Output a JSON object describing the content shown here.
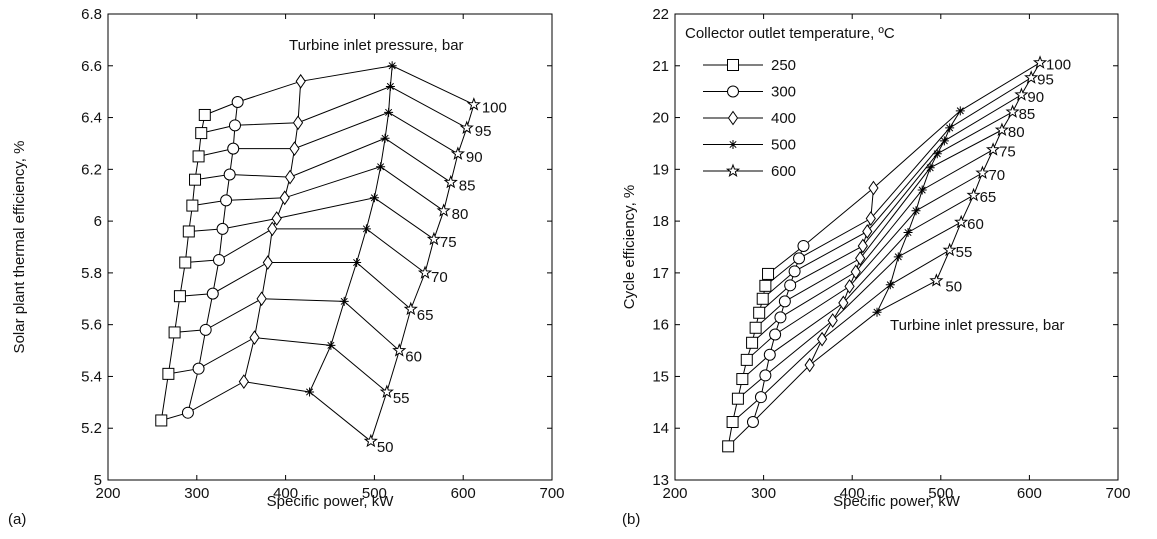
{
  "chart_data": [
    {
      "panel_label": "(a)",
      "type": "line",
      "xlabel": "Specific power, kW",
      "ylabel": "Solar plant thermal efficiency, %",
      "xlim": [
        200,
        700
      ],
      "ylim": [
        5,
        6.8
      ],
      "xticks": [
        200,
        300,
        400,
        500,
        600,
        700
      ],
      "yticks": [
        5,
        5.2,
        5.4,
        5.6,
        5.8,
        6,
        6.2,
        6.4,
        6.6,
        6.8
      ],
      "annotation": "Turbine inlet pressure, bar",
      "pressure_labels": [
        "50",
        "55",
        "60",
        "65",
        "70",
        "75",
        "80",
        "85",
        "90",
        "95",
        "100"
      ],
      "series": [
        {
          "name": "250",
          "marker": "square",
          "x": [
            260,
            268,
            275,
            281,
            287,
            291,
            295,
            298,
            302,
            305,
            309
          ],
          "y": [
            5.23,
            5.41,
            5.57,
            5.71,
            5.84,
            5.96,
            6.06,
            6.16,
            6.25,
            6.34,
            6.41
          ]
        },
        {
          "name": "300",
          "marker": "circle",
          "x": [
            290,
            302,
            310,
            318,
            325,
            329,
            333,
            337,
            341,
            343,
            346
          ],
          "y": [
            5.26,
            5.43,
            5.58,
            5.72,
            5.85,
            5.97,
            6.08,
            6.18,
            6.28,
            6.37,
            6.46
          ]
        },
        {
          "name": "400",
          "marker": "diamond",
          "x": [
            353,
            365,
            373,
            380,
            385,
            390,
            399,
            405,
            410,
            414,
            417
          ],
          "y": [
            5.38,
            5.55,
            5.7,
            5.84,
            5.97,
            6.01,
            6.09,
            6.17,
            6.28,
            6.38,
            6.54
          ]
        },
        {
          "name": "500",
          "marker": "asterisk",
          "x": [
            427,
            451,
            466,
            480,
            491,
            500,
            507,
            512,
            516,
            518,
            520
          ],
          "y": [
            5.34,
            5.52,
            5.69,
            5.84,
            5.97,
            6.09,
            6.21,
            6.32,
            6.42,
            6.52,
            6.6
          ]
        },
        {
          "name": "600",
          "marker": "star",
          "x": [
            496,
            514,
            528,
            541,
            557,
            567,
            578,
            586,
            594,
            604,
            612
          ],
          "y": [
            5.15,
            5.34,
            5.5,
            5.66,
            5.8,
            5.93,
            6.04,
            6.15,
            6.26,
            6.36,
            6.45
          ]
        }
      ]
    },
    {
      "panel_label": "(b)",
      "type": "line",
      "xlabel": "Specific power, kW",
      "ylabel": "Cycle efficiency, %",
      "xlim": [
        200,
        700
      ],
      "ylim": [
        13,
        22
      ],
      "xticks": [
        200,
        300,
        400,
        500,
        600,
        700
      ],
      "yticks": [
        13,
        14,
        15,
        16,
        17,
        18,
        19,
        20,
        21,
        22
      ],
      "annotation": "Turbine inlet pressure, bar",
      "pressure_labels": [
        "50",
        "55",
        "60",
        "65",
        "70",
        "75",
        "80",
        "85",
        "90",
        "95",
        "100"
      ],
      "legend": {
        "title": "Collector outlet temperature, ºC",
        "placement": "top-left"
      },
      "series": [
        {
          "name": "250",
          "marker": "square",
          "x": [
            260,
            265,
            271,
            276,
            281,
            287,
            291,
            295,
            299,
            302,
            305
          ],
          "y": [
            13.65,
            14.12,
            14.57,
            14.95,
            15.32,
            15.65,
            15.94,
            16.23,
            16.5,
            16.75,
            16.98
          ]
        },
        {
          "name": "300",
          "marker": "circle",
          "x": [
            288,
            297,
            302,
            307,
            313,
            319,
            324,
            330,
            335,
            340,
            345
          ],
          "y": [
            14.12,
            14.6,
            15.02,
            15.42,
            15.81,
            16.14,
            16.45,
            16.76,
            17.03,
            17.28,
            17.52
          ]
        },
        {
          "name": "400",
          "marker": "diamond",
          "x": [
            352,
            366,
            378,
            390,
            397,
            404,
            409,
            412,
            417,
            421,
            424
          ],
          "y": [
            15.22,
            15.72,
            16.08,
            16.42,
            16.74,
            17.02,
            17.28,
            17.52,
            17.8,
            18.05,
            18.64
          ]
        },
        {
          "name": "500",
          "marker": "asterisk",
          "x": [
            428,
            443,
            452,
            463,
            472,
            479,
            488,
            496,
            504,
            510,
            522
          ],
          "y": [
            16.24,
            16.77,
            17.31,
            17.78,
            18.2,
            18.6,
            19.03,
            19.3,
            19.55,
            19.8,
            20.13
          ]
        },
        {
          "name": "600",
          "marker": "star",
          "x": [
            495,
            510,
            523,
            537,
            547,
            559,
            569,
            581,
            591,
            602,
            612
          ],
          "y": [
            16.85,
            17.44,
            17.98,
            18.5,
            18.93,
            19.38,
            19.76,
            20.11,
            20.44,
            20.77,
            21.06
          ]
        }
      ]
    }
  ]
}
